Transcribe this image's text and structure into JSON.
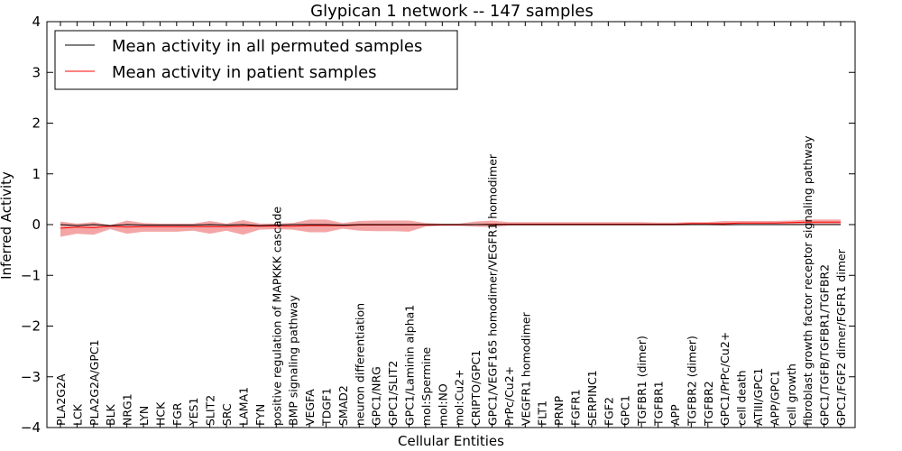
{
  "chart_data": {
    "type": "line",
    "title": "Glypican 1 network -- 147 samples",
    "xlabel": "Cellular Entities",
    "ylabel": "Inferred Activity",
    "ylim": [
      -4,
      4
    ],
    "yticks": [
      4,
      3,
      2,
      1,
      0,
      -1,
      -2,
      -3,
      -4
    ],
    "ytick_labels": [
      "4",
      "3",
      "2",
      "1",
      "0",
      "−1",
      "−2",
      "−3",
      "−4"
    ],
    "grid": false,
    "legend_position": "top-left",
    "categories": [
      "PLA2G2A",
      "LCK",
      "PLA2G2A/GPC1",
      "BLK",
      "NRG1",
      "LYN",
      "HCK",
      "FGR",
      "YES1",
      "SLIT2",
      "SRC",
      "LAMA1",
      "FYN",
      "positive regulation of MAPKKK cascade",
      "BMP signaling pathway",
      "VEGFA",
      "TDGF1",
      "SMAD2",
      "neuron differentiation",
      "GPC1/NRG",
      "GPC1/SLIT2",
      "GPC1/Laminin alpha1",
      "mol:Spermine",
      "mol:NO",
      "mol:Cu2+",
      "CRIPTO/GPC1",
      "GPC1/VEGF165 homodimer/VEGFR1 homodimer",
      "PrPc/Cu2+",
      "VEGFR1 homodimer",
      "FLT1",
      "PRNP",
      "FGFR1",
      "SERPINC1",
      "FGF2",
      "GPC1",
      "TGFBR1 (dimer)",
      "TGFBR1",
      "APP",
      "TGFBR2 (dimer)",
      "TGFBR2",
      "GPC1/PrPc/Cu2+",
      "cell death",
      "ATIII/GPC1",
      "APP/GPC1",
      "cell growth",
      "fibroblast growth factor receptor signaling pathway",
      "GPC1/TGFB/TGFBR1/TGFBR2",
      "GPC1/FGF2 dimer/FGFR1 dimer"
    ],
    "series": [
      {
        "name": "Mean activity in all permuted samples",
        "color": "#000000",
        "values": [
          0,
          -0.02,
          0,
          -0.02,
          0,
          -0.01,
          -0.01,
          -0.01,
          -0.01,
          0,
          -0.01,
          0,
          -0.02,
          -0.01,
          0,
          0,
          0,
          -0.01,
          0,
          0,
          0,
          0,
          0,
          0,
          0,
          0,
          0,
          0,
          0,
          0,
          0,
          0,
          0,
          0,
          0,
          0,
          0,
          0,
          0,
          0,
          0,
          0,
          0,
          0,
          0,
          0,
          0,
          0
        ]
      },
      {
        "name": "Mean activity in patient samples",
        "color": "#ff0000",
        "band_color": "#f08080",
        "values": [
          -0.07,
          -0.05,
          -0.06,
          -0.03,
          -0.05,
          -0.04,
          -0.04,
          -0.04,
          -0.04,
          -0.04,
          -0.04,
          -0.03,
          -0.03,
          -0.03,
          -0.03,
          -0.02,
          -0.02,
          -0.02,
          -0.01,
          -0.01,
          -0.01,
          -0.01,
          -0.01,
          -0.01,
          -0.01,
          0,
          0.01,
          0.01,
          0.01,
          0.01,
          0.01,
          0.01,
          0.01,
          0.01,
          0.01,
          0.01,
          0.01,
          0.01,
          0.02,
          0.02,
          0.02,
          0.03,
          0.03,
          0.03,
          0.04,
          0.05,
          0.05,
          0.05
        ],
        "upper": [
          0.06,
          0.02,
          0.05,
          -0.01,
          0.08,
          0.03,
          0.02,
          0.02,
          0.02,
          0.07,
          0.02,
          0.09,
          0.02,
          0.02,
          0.03,
          0.1,
          0.1,
          0.03,
          0.07,
          0.08,
          0.08,
          0.08,
          0.03,
          0.02,
          0.02,
          0.06,
          0.08,
          0.05,
          0.05,
          0.05,
          0.05,
          0.05,
          0.05,
          0.05,
          0.05,
          0.05,
          0.04,
          0.04,
          0.05,
          0.05,
          0.07,
          0.07,
          0.07,
          0.07,
          0.08,
          0.1,
          0.1,
          0.1
        ],
        "lower": [
          -0.24,
          -0.18,
          -0.2,
          -0.09,
          -0.18,
          -0.14,
          -0.14,
          -0.14,
          -0.12,
          -0.18,
          -0.12,
          -0.2,
          -0.1,
          -0.09,
          -0.1,
          -0.15,
          -0.15,
          -0.08,
          -0.12,
          -0.13,
          -0.13,
          -0.14,
          -0.04,
          -0.02,
          -0.02,
          -0.04,
          -0.05,
          -0.02,
          -0.02,
          -0.02,
          -0.02,
          -0.02,
          -0.02,
          -0.02,
          -0.02,
          -0.02,
          -0.02,
          -0.02,
          -0.01,
          -0.01,
          -0.02,
          -0.01,
          -0.01,
          -0.01,
          -0.01,
          0,
          0,
          0
        ]
      }
    ]
  }
}
